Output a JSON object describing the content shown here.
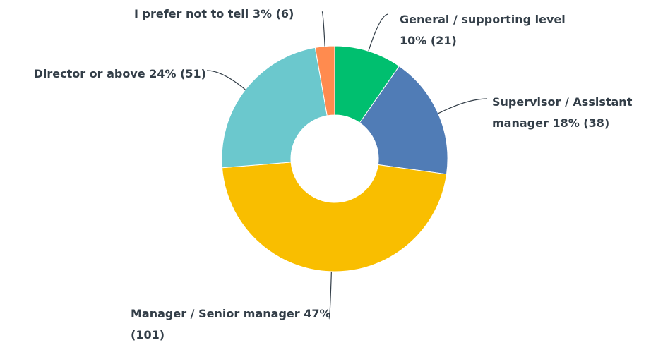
{
  "chart_data": {
    "type": "donut",
    "categories": [
      "General / supporting level",
      "Supervisor / Assistant manager",
      "Manager / Senior manager",
      "Director or above",
      "I prefer not to tell"
    ],
    "values": [
      21,
      38,
      101,
      51,
      6
    ],
    "value_labels": [
      "10% (21)",
      "18% (38)",
      "47% (101)",
      "24% (51)",
      "3% (6)"
    ],
    "colors": [
      "#00bf6f",
      "#507cb6",
      "#f9be00",
      "#6bc8cd",
      "#ff8b4f"
    ]
  }
}
